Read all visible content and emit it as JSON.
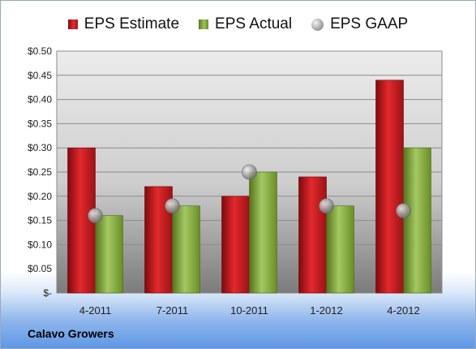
{
  "chart_data": {
    "type": "bar",
    "categories": [
      "4-2011",
      "7-2011",
      "10-2011",
      "1-2012",
      "4-2012"
    ],
    "series": [
      {
        "name": "EPS Estimate",
        "kind": "bar",
        "color": "#c8181e",
        "values": [
          0.3,
          0.22,
          0.2,
          0.24,
          0.44
        ]
      },
      {
        "name": "EPS Actual",
        "kind": "bar",
        "color": "#8db04a",
        "values": [
          0.16,
          0.18,
          0.25,
          0.18,
          0.3
        ]
      },
      {
        "name": "EPS GAAP",
        "kind": "marker",
        "color": "#a9a9a9",
        "values": [
          0.16,
          0.18,
          0.25,
          0.18,
          0.17
        ]
      }
    ],
    "yticks": [
      "$-",
      "$0.05",
      "$0.10",
      "$0.15",
      "$0.20",
      "$0.25",
      "$0.30",
      "$0.35",
      "$0.40",
      "$0.45",
      "$0.50"
    ],
    "ylim": [
      0,
      0.5
    ],
    "grid": true,
    "legend_position": "top"
  },
  "footer": {
    "company": "Calavo Growers"
  }
}
